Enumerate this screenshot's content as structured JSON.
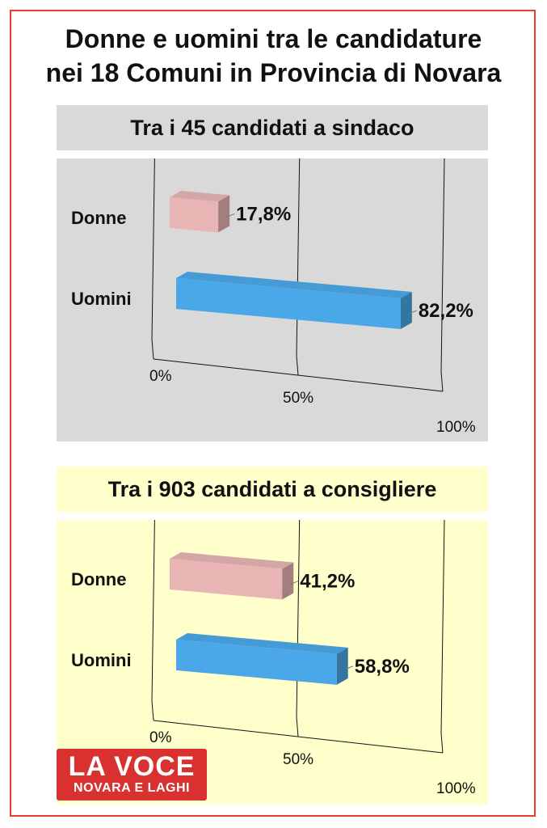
{
  "title": {
    "line1": "Donne e uomini tra le candidature",
    "line2": "nei 18 Comuni in Provincia di Novara"
  },
  "sections": [
    {
      "header": "Tra i 45 candidati a sindaco",
      "header_bg": "#d9d9d9",
      "panel_bg": "#d9d9d9"
    },
    {
      "header": "Tra i 903 candidati a consigliere",
      "header_bg": "#ffffcc",
      "panel_bg": "#ffffcc"
    }
  ],
  "logo": {
    "line1": "LA VOCE",
    "line2": "NOVARA E LAGHI",
    "color": "#d93030"
  },
  "colors": {
    "donne": "#e8b4b4",
    "uomini": "#4aa8e8"
  },
  "chart_data": [
    {
      "type": "bar",
      "orientation": "horizontal",
      "categories": [
        "Donne",
        "Uomini"
      ],
      "values": [
        17.8,
        82.2
      ],
      "value_labels": [
        "17,8%",
        "82,2%"
      ],
      "xlim": [
        0,
        100
      ],
      "x_ticks": [
        "0%",
        "50%",
        "100%"
      ]
    },
    {
      "type": "bar",
      "orientation": "horizontal",
      "categories": [
        "Donne",
        "Uomini"
      ],
      "values": [
        41.2,
        58.8
      ],
      "value_labels": [
        "41,2%",
        "58,8%"
      ],
      "xlim": [
        0,
        100
      ],
      "x_ticks": [
        "0%",
        "50%",
        "100%"
      ]
    }
  ]
}
